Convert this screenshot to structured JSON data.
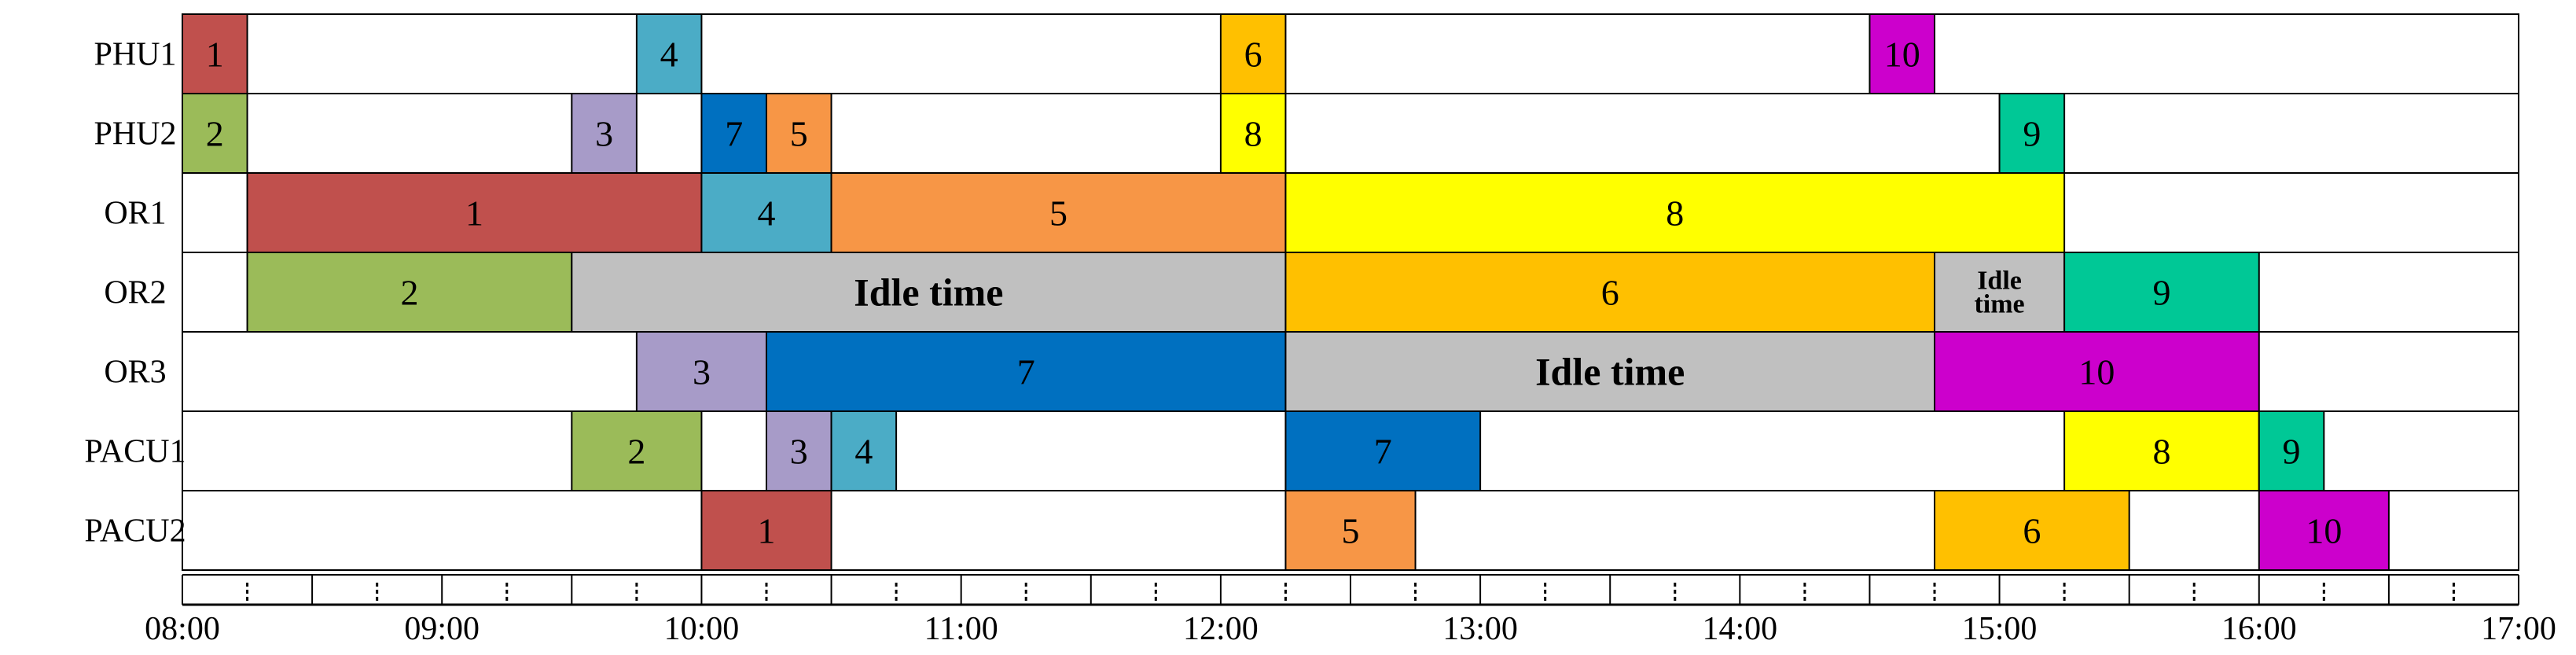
{
  "chart_data": {
    "type": "gantt",
    "title": "",
    "rows": [
      "PHU1",
      "PHU2",
      "OR1",
      "OR2",
      "OR3",
      "PACU1",
      "PACU2"
    ],
    "x_ticks": [
      "08:00",
      "09:00",
      "10:00",
      "11:00",
      "12:00",
      "13:00",
      "14:00",
      "15:00",
      "16:00",
      "17:00"
    ],
    "xlim": [
      "08:00",
      "17:00"
    ],
    "minor_tick_minutes": 15,
    "colors": {
      "1": "#C0504D",
      "2": "#9BBB59",
      "3": "#A79BC8",
      "4": "#4BACC6",
      "5": "#F79646",
      "6": "#FFC000",
      "7": "#0070C0",
      "8": "#FFFF00",
      "9": "#00C896",
      "10": "#CC00CC",
      "idle": "#C0C0C0"
    },
    "tasks": [
      {
        "row": "PHU1",
        "label": "1",
        "start": "08:00",
        "end": "08:15",
        "color_key": "1"
      },
      {
        "row": "PHU1",
        "label": "4",
        "start": "09:45",
        "end": "10:00",
        "color_key": "4"
      },
      {
        "row": "PHU1",
        "label": "6",
        "start": "12:00",
        "end": "12:15",
        "color_key": "6"
      },
      {
        "row": "PHU1",
        "label": "10",
        "start": "14:30",
        "end": "14:45",
        "color_key": "10"
      },
      {
        "row": "PHU2",
        "label": "2",
        "start": "08:00",
        "end": "08:15",
        "color_key": "2"
      },
      {
        "row": "PHU2",
        "label": "3",
        "start": "09:30",
        "end": "09:45",
        "color_key": "3"
      },
      {
        "row": "PHU2",
        "label": "7",
        "start": "10:00",
        "end": "10:15",
        "color_key": "7"
      },
      {
        "row": "PHU2",
        "label": "5",
        "start": "10:15",
        "end": "10:30",
        "color_key": "5"
      },
      {
        "row": "PHU2",
        "label": "8",
        "start": "12:00",
        "end": "12:15",
        "color_key": "8"
      },
      {
        "row": "PHU2",
        "label": "9",
        "start": "15:00",
        "end": "15:15",
        "color_key": "9"
      },
      {
        "row": "OR1",
        "label": "1",
        "start": "08:15",
        "end": "10:00",
        "color_key": "1"
      },
      {
        "row": "OR1",
        "label": "4",
        "start": "10:00",
        "end": "10:30",
        "color_key": "4"
      },
      {
        "row": "OR1",
        "label": "5",
        "start": "10:30",
        "end": "12:15",
        "color_key": "5"
      },
      {
        "row": "OR1",
        "label": "8",
        "start": "12:15",
        "end": "15:15",
        "color_key": "8"
      },
      {
        "row": "OR2",
        "label": "2",
        "start": "08:15",
        "end": "09:30",
        "color_key": "2"
      },
      {
        "row": "OR2",
        "label": "Idle time",
        "start": "09:30",
        "end": "12:15",
        "color_key": "idle",
        "idle": true
      },
      {
        "row": "OR2",
        "label": "6",
        "start": "12:15",
        "end": "14:45",
        "color_key": "6"
      },
      {
        "row": "OR2",
        "label": "Idle time",
        "start": "14:45",
        "end": "15:15",
        "color_key": "idle",
        "idle": true,
        "wrapped": true
      },
      {
        "row": "OR2",
        "label": "9",
        "start": "15:15",
        "end": "16:00",
        "color_key": "9"
      },
      {
        "row": "OR3",
        "label": "3",
        "start": "09:45",
        "end": "10:15",
        "color_key": "3"
      },
      {
        "row": "OR3",
        "label": "7",
        "start": "10:15",
        "end": "12:15",
        "color_key": "7"
      },
      {
        "row": "OR3",
        "label": "Idle time",
        "start": "12:15",
        "end": "14:45",
        "color_key": "idle",
        "idle": true
      },
      {
        "row": "OR3",
        "label": "10",
        "start": "14:45",
        "end": "16:00",
        "color_key": "10"
      },
      {
        "row": "PACU1",
        "label": "2",
        "start": "09:30",
        "end": "10:00",
        "color_key": "2"
      },
      {
        "row": "PACU1",
        "label": "3",
        "start": "10:15",
        "end": "10:30",
        "color_key": "3"
      },
      {
        "row": "PACU1",
        "label": "4",
        "start": "10:30",
        "end": "10:45",
        "color_key": "4"
      },
      {
        "row": "PACU1",
        "label": "7",
        "start": "12:15",
        "end": "13:00",
        "color_key": "7"
      },
      {
        "row": "PACU1",
        "label": "8",
        "start": "15:15",
        "end": "16:00",
        "color_key": "8"
      },
      {
        "row": "PACU1",
        "label": "9",
        "start": "16:00",
        "end": "16:15",
        "color_key": "9"
      },
      {
        "row": "PACU2",
        "label": "1",
        "start": "10:00",
        "end": "10:30",
        "color_key": "1"
      },
      {
        "row": "PACU2",
        "label": "5",
        "start": "12:15",
        "end": "12:45",
        "color_key": "5"
      },
      {
        "row": "PACU2",
        "label": "6",
        "start": "14:45",
        "end": "15:30",
        "color_key": "6"
      },
      {
        "row": "PACU2",
        "label": "10",
        "start": "16:00",
        "end": "16:30",
        "color_key": "10"
      }
    ]
  }
}
